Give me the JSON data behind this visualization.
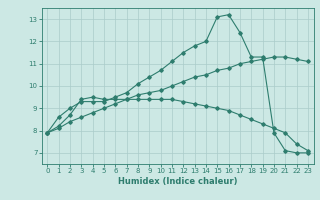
{
  "title": "",
  "xlabel": "Humidex (Indice chaleur)",
  "bg_color": "#cce8e4",
  "grid_color": "#aaccca",
  "line_color": "#2e7d6e",
  "xlim": [
    -0.5,
    23.5
  ],
  "ylim": [
    6.5,
    13.5
  ],
  "xticks": [
    0,
    1,
    2,
    3,
    4,
    5,
    6,
    7,
    8,
    9,
    10,
    11,
    12,
    13,
    14,
    15,
    16,
    17,
    18,
    19,
    20,
    21,
    22,
    23
  ],
  "yticks": [
    7,
    8,
    9,
    10,
    11,
    12,
    13
  ],
  "series1_x": [
    0,
    1,
    2,
    3,
    4,
    5,
    6,
    7,
    8,
    9,
    10,
    11,
    12,
    13,
    14,
    15,
    16,
    17,
    18,
    19,
    20,
    21,
    22,
    23
  ],
  "series1_y": [
    7.9,
    8.6,
    9.0,
    9.3,
    9.3,
    9.3,
    9.5,
    9.7,
    10.1,
    10.4,
    10.7,
    11.1,
    11.5,
    11.8,
    12.0,
    13.1,
    13.2,
    12.4,
    11.3,
    11.3,
    7.9,
    7.1,
    7.0,
    7.0
  ],
  "series2_x": [
    0,
    1,
    2,
    3,
    4,
    5,
    6,
    7,
    8,
    9,
    10,
    11,
    12,
    13,
    14,
    15,
    16,
    17,
    18,
    19,
    20,
    21,
    22,
    23
  ],
  "series2_y": [
    7.9,
    8.1,
    8.4,
    8.6,
    8.8,
    9.0,
    9.2,
    9.4,
    9.6,
    9.7,
    9.8,
    10.0,
    10.2,
    10.4,
    10.5,
    10.7,
    10.8,
    11.0,
    11.1,
    11.2,
    11.3,
    11.3,
    11.2,
    11.1
  ],
  "series3_x": [
    0,
    1,
    2,
    3,
    4,
    5,
    6,
    7,
    8,
    9,
    10,
    11,
    12,
    13,
    14,
    15,
    16,
    17,
    18,
    19,
    20,
    21,
    22,
    23
  ],
  "series3_y": [
    7.9,
    8.2,
    8.7,
    9.4,
    9.5,
    9.4,
    9.4,
    9.4,
    9.4,
    9.4,
    9.4,
    9.4,
    9.3,
    9.2,
    9.1,
    9.0,
    8.9,
    8.7,
    8.5,
    8.3,
    8.1,
    7.9,
    7.4,
    7.1
  ]
}
